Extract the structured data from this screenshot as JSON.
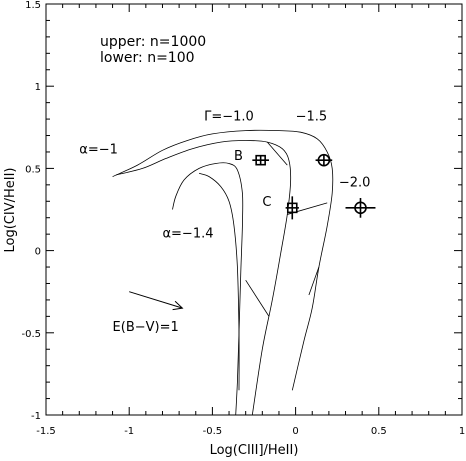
{
  "chart_data": {
    "type": "line",
    "xlabel": "Log(CIII]/HeII)",
    "ylabel": "Log(CIV/HeII)",
    "xlim": [
      -1.5,
      1
    ],
    "ylim": [
      -1,
      1.5
    ],
    "xticks": [
      -1.5,
      -1,
      -0.5,
      0,
      0.5,
      1
    ],
    "xtick_labels": [
      "-1.5",
      "-1",
      "-0.5",
      "0",
      "0.5",
      "1"
    ],
    "yticks": [
      -1,
      -0.5,
      0,
      0.5,
      1,
      1.5
    ],
    "ytick_labels": [
      "-1",
      "-0.5",
      "0",
      "0.5",
      "1",
      "1.5"
    ],
    "grid": false,
    "legend_text": [
      "upper: n=1000",
      "lower: n=100"
    ],
    "annotations": [
      {
        "text": "α=−1",
        "x": -1.3,
        "y": 0.59
      },
      {
        "text": "Γ=−1.0",
        "x": -0.55,
        "y": 0.79
      },
      {
        "text": "−1.5",
        "x": 0.0,
        "y": 0.79
      },
      {
        "text": "−2.0",
        "x": 0.26,
        "y": 0.39
      },
      {
        "text": "B",
        "x": -0.37,
        "y": 0.55
      },
      {
        "text": "C",
        "x": -0.2,
        "y": 0.27
      },
      {
        "text": "α=−1.4",
        "x": -0.8,
        "y": 0.08
      },
      {
        "text": "E(B−V)=1",
        "x": -1.1,
        "y": -0.49
      }
    ],
    "model_curves": [
      {
        "points": [
          [
            -1.1,
            0.45
          ],
          [
            -0.95,
            0.52
          ],
          [
            -0.8,
            0.61
          ],
          [
            -0.65,
            0.67
          ],
          [
            -0.5,
            0.71
          ],
          [
            -0.3,
            0.73
          ],
          [
            -0.1,
            0.73
          ],
          [
            0.03,
            0.72
          ],
          [
            0.13,
            0.68
          ],
          [
            0.19,
            0.6
          ],
          [
            0.22,
            0.5
          ],
          [
            0.22,
            0.35
          ],
          [
            0.19,
            0.15
          ],
          [
            0.14,
            -0.1
          ],
          [
            0.1,
            -0.35
          ],
          [
            0.05,
            -0.55
          ],
          [
            -0.02,
            -0.85
          ]
        ]
      },
      {
        "points": [
          [
            -1.08,
            0.46
          ],
          [
            -0.92,
            0.5
          ],
          [
            -0.78,
            0.56
          ],
          [
            -0.62,
            0.62
          ],
          [
            -0.45,
            0.66
          ],
          [
            -0.3,
            0.67
          ],
          [
            -0.17,
            0.66
          ],
          [
            -0.08,
            0.62
          ],
          [
            -0.04,
            0.55
          ],
          [
            -0.03,
            0.42
          ],
          [
            -0.05,
            0.22
          ],
          [
            -0.09,
            -0.02
          ],
          [
            -0.14,
            -0.3
          ],
          [
            -0.2,
            -0.6
          ],
          [
            -0.26,
            -1.0
          ]
        ]
      },
      {
        "points": [
          [
            -0.74,
            0.25
          ],
          [
            -0.72,
            0.33
          ],
          [
            -0.67,
            0.43
          ],
          [
            -0.58,
            0.5
          ],
          [
            -0.48,
            0.53
          ],
          [
            -0.4,
            0.53
          ],
          [
            -0.35,
            0.49
          ],
          [
            -0.32,
            0.35
          ],
          [
            -0.32,
            0.15
          ],
          [
            -0.33,
            -0.15
          ],
          [
            -0.34,
            -0.5
          ],
          [
            -0.35,
            -0.8
          ],
          [
            -0.36,
            -1.0
          ]
        ]
      },
      {
        "points": [
          [
            -0.58,
            0.47
          ],
          [
            -0.52,
            0.45
          ],
          [
            -0.45,
            0.39
          ],
          [
            -0.4,
            0.3
          ],
          [
            -0.37,
            0.15
          ],
          [
            -0.35,
            -0.1
          ],
          [
            -0.34,
            -0.5
          ],
          [
            -0.34,
            -0.85
          ]
        ]
      }
    ],
    "connecting_lines": [
      {
        "points": [
          [
            -0.17,
            0.66
          ],
          [
            -0.05,
            0.52
          ]
        ]
      },
      {
        "points": [
          [
            -0.05,
            0.22
          ],
          [
            0.19,
            0.29
          ]
        ]
      },
      {
        "points": [
          [
            -0.16,
            -0.4
          ],
          [
            -0.3,
            -0.18
          ]
        ]
      },
      {
        "points": [
          [
            0.08,
            -0.27
          ],
          [
            0.14,
            -0.1
          ]
        ]
      }
    ],
    "reddening_vector": {
      "from": [
        -1.0,
        -0.25
      ],
      "to": [
        -0.68,
        -0.35
      ]
    },
    "data_points": [
      {
        "x": -0.21,
        "y": 0.55,
        "xerr": 0.05,
        "yerr": 0.03,
        "marker": "square-cross"
      },
      {
        "x": 0.17,
        "y": 0.55,
        "xerr": 0.05,
        "yerr": 0.03,
        "marker": "circle-cross"
      },
      {
        "x": -0.02,
        "y": 0.26,
        "xerr": 0.04,
        "yerr": 0.07,
        "marker": "square-cross"
      },
      {
        "x": 0.39,
        "y": 0.26,
        "xerr": 0.09,
        "yerr": 0.06,
        "marker": "circle-cross"
      }
    ]
  }
}
